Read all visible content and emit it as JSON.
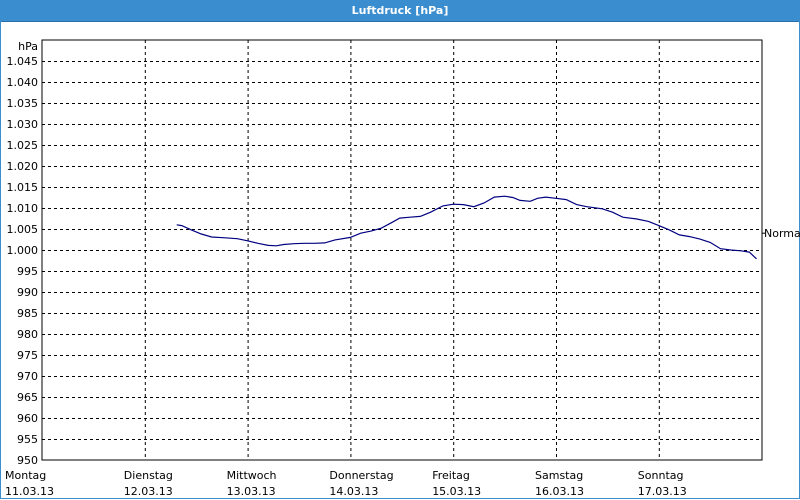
{
  "window": {
    "title": "Luftdruck [hPa]"
  },
  "chart_data": {
    "type": "line",
    "title": "Luftdruck [hPa]",
    "ylabel": "hPa",
    "ylim": [
      950,
      1050
    ],
    "yticks": [
      "950",
      "955",
      "960",
      "965",
      "970",
      "975",
      "980",
      "985",
      "990",
      "995",
      "1.000",
      "1.005",
      "1.010",
      "1.015",
      "1.020",
      "1.025",
      "1.030",
      "1.035",
      "1.040",
      "1.045"
    ],
    "x_categories": [
      {
        "day": "Montag",
        "date": "11.03.13"
      },
      {
        "day": "Dienstag",
        "date": "12.03.13"
      },
      {
        "day": "Mittwoch",
        "date": "13.03.13"
      },
      {
        "day": "Donnerstag",
        "date": "14.03.13"
      },
      {
        "day": "Freitag",
        "date": "15.03.13"
      },
      {
        "day": "Samstag",
        "date": "16.03.13"
      },
      {
        "day": "Sonntag",
        "date": "17.03.13"
      }
    ],
    "grid": true,
    "reference_line": {
      "label": "Normal",
      "value": 1004
    },
    "series": [
      {
        "color": "#000080",
        "points": [
          [
            1.31,
            1006.0
          ],
          [
            1.36,
            1005.8
          ],
          [
            1.45,
            1004.8
          ],
          [
            1.55,
            1003.8
          ],
          [
            1.65,
            1003.1
          ],
          [
            1.78,
            1002.9
          ],
          [
            1.9,
            1002.7
          ],
          [
            2.0,
            1002.2
          ],
          [
            2.1,
            1001.6
          ],
          [
            2.2,
            1001.1
          ],
          [
            2.28,
            1001.0
          ],
          [
            2.35,
            1001.3
          ],
          [
            2.45,
            1001.5
          ],
          [
            2.55,
            1001.6
          ],
          [
            2.65,
            1001.6
          ],
          [
            2.75,
            1001.7
          ],
          [
            2.85,
            1002.4
          ],
          [
            3.0,
            1003.0
          ],
          [
            3.1,
            1004.0
          ],
          [
            3.2,
            1004.5
          ],
          [
            3.3,
            1005.2
          ],
          [
            3.4,
            1006.5
          ],
          [
            3.48,
            1007.6
          ],
          [
            3.58,
            1007.8
          ],
          [
            3.68,
            1008.0
          ],
          [
            3.78,
            1009.0
          ],
          [
            3.9,
            1010.5
          ],
          [
            4.0,
            1010.9
          ],
          [
            4.1,
            1010.8
          ],
          [
            4.2,
            1010.3
          ],
          [
            4.3,
            1011.2
          ],
          [
            4.4,
            1012.6
          ],
          [
            4.5,
            1012.8
          ],
          [
            4.58,
            1012.5
          ],
          [
            4.65,
            1011.8
          ],
          [
            4.75,
            1011.6
          ],
          [
            4.82,
            1012.3
          ],
          [
            4.9,
            1012.6
          ],
          [
            5.0,
            1012.3
          ],
          [
            5.1,
            1012.0
          ],
          [
            5.2,
            1010.8
          ],
          [
            5.3,
            1010.3
          ],
          [
            5.45,
            1009.8
          ],
          [
            5.55,
            1009.0
          ],
          [
            5.65,
            1007.8
          ],
          [
            5.78,
            1007.4
          ],
          [
            5.9,
            1006.8
          ],
          [
            6.0,
            1005.8
          ],
          [
            6.1,
            1004.8
          ],
          [
            6.2,
            1003.6
          ],
          [
            6.3,
            1003.2
          ],
          [
            6.4,
            1002.6
          ],
          [
            6.5,
            1001.8
          ],
          [
            6.6,
            1000.3
          ],
          [
            6.7,
            1000.0
          ],
          [
            6.8,
            999.8
          ],
          [
            6.88,
            999.5
          ],
          [
            6.95,
            997.9
          ]
        ]
      }
    ]
  }
}
